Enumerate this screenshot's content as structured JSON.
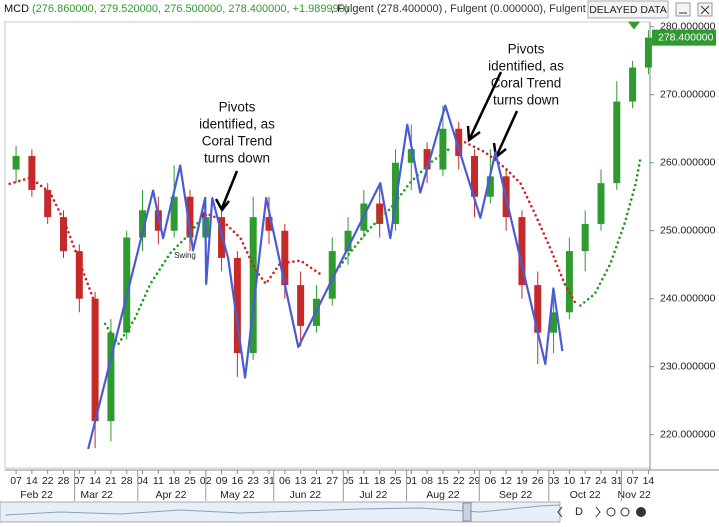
{
  "header": {
    "symbol": "MCD",
    "ohlc": "(276.860000, 279.520000, 276.500000, 278.400000, +1.989990)",
    "ind1": ", Fulgent (278.400000)",
    "ind2": ", Fulgent (0.000000)",
    "ind3": ", Fulgent",
    "status": "DELAYED DATA"
  },
  "toolbar": {
    "period": "D"
  },
  "chart_data": {
    "type": "candlestick",
    "x": [
      0,
      1,
      2,
      3,
      4,
      5,
      6,
      7,
      8,
      9,
      10,
      11,
      12,
      13,
      14,
      15,
      16,
      17,
      18,
      19,
      20,
      21,
      22,
      23,
      24,
      25,
      26,
      27,
      28,
      29,
      30,
      31,
      32,
      33,
      34,
      35,
      36,
      37,
      38,
      39,
      40
    ],
    "open": [
      259,
      261,
      256,
      252,
      247,
      240,
      222,
      235,
      249,
      253,
      250,
      255,
      249,
      252,
      246,
      232,
      252,
      250,
      242,
      236,
      240,
      247,
      250,
      254,
      251,
      260,
      262,
      259,
      265,
      261,
      255,
      258,
      252,
      242,
      235,
      238,
      247,
      251,
      257,
      269,
      274
    ],
    "high": [
      262.5,
      262,
      257,
      253,
      248,
      241,
      237,
      250,
      256,
      255,
      259.6,
      256,
      255,
      253,
      247,
      255,
      255,
      251,
      244,
      242,
      249,
      252,
      256,
      257,
      262,
      265.6,
      263,
      268.4,
      266,
      262,
      262,
      259,
      253,
      244,
      241.5,
      249,
      253,
      259,
      272,
      275,
      279.5
    ],
    "low": [
      257,
      255,
      251,
      246,
      238,
      218,
      219,
      234,
      247,
      248,
      249,
      247,
      242,
      244,
      228.5,
      231,
      248,
      240,
      233,
      235,
      239,
      245,
      249,
      249,
      250,
      256,
      257,
      258,
      259,
      252,
      254,
      250,
      240,
      230.4,
      232,
      237,
      244,
      250,
      256,
      268,
      273
    ],
    "close": [
      261,
      256,
      252,
      247,
      240,
      222,
      235,
      249,
      253,
      250,
      255,
      249,
      252,
      246,
      232,
      252,
      250,
      242,
      236,
      240,
      247,
      250,
      254,
      251,
      260,
      262,
      259,
      265,
      261,
      255,
      258,
      252,
      242,
      235,
      238,
      247,
      251,
      257,
      269,
      274,
      278.4
    ],
    "up_color": "#2f9a2f",
    "down_color": "#c42a2a",
    "xlim": [
      -0.7,
      40.1
    ],
    "xticks": [
      {
        "value": 0,
        "label": "07"
      },
      {
        "value": 1,
        "label": "14"
      },
      {
        "value": 2,
        "label": "22"
      },
      {
        "value": 3,
        "label": "28"
      },
      {
        "value": 4,
        "label": "07"
      },
      {
        "value": 5,
        "label": "14"
      },
      {
        "value": 6,
        "label": "21"
      },
      {
        "value": 7,
        "label": "28"
      },
      {
        "value": 8,
        "label": "04"
      },
      {
        "value": 9,
        "label": "11"
      },
      {
        "value": 10,
        "label": "18"
      },
      {
        "value": 11,
        "label": "25"
      },
      {
        "value": 12,
        "label": "02"
      },
      {
        "value": 13,
        "label": "09"
      },
      {
        "value": 14,
        "label": "16"
      },
      {
        "value": 15,
        "label": "23"
      },
      {
        "value": 16,
        "label": "31"
      },
      {
        "value": 17,
        "label": "06"
      },
      {
        "value": 18,
        "label": "13"
      },
      {
        "value": 19,
        "label": "21"
      },
      {
        "value": 20,
        "label": "27"
      },
      {
        "value": 21,
        "label": "05"
      },
      {
        "value": 22,
        "label": "11"
      },
      {
        "value": 23,
        "label": "18"
      },
      {
        "value": 24,
        "label": "25"
      },
      {
        "value": 25,
        "label": "01"
      },
      {
        "value": 26,
        "label": "08"
      },
      {
        "value": 27,
        "label": "15"
      },
      {
        "value": 28,
        "label": "22"
      },
      {
        "value": 29,
        "label": "29"
      },
      {
        "value": 30,
        "label": "06"
      },
      {
        "value": 31,
        "label": "12"
      },
      {
        "value": 32,
        "label": "19"
      },
      {
        "value": 33,
        "label": "26"
      },
      {
        "value": 34,
        "label": "03"
      },
      {
        "value": 35,
        "label": "10"
      },
      {
        "value": 36,
        "label": "17"
      },
      {
        "value": 37,
        "label": "24"
      },
      {
        "value": 38,
        "label": "31"
      },
      {
        "value": 39,
        "label": "07"
      },
      {
        "value": 40,
        "label": "14"
      }
    ],
    "months": [
      "Feb 22",
      "Mar 22",
      "Apr 22",
      "May 22",
      "Jun 22",
      "Jul 22",
      "Aug 22",
      "Sep 22",
      "Oct 22",
      "Nov 22"
    ],
    "ylim": [
      215.1,
      280.7
    ],
    "yticks": [
      {
        "value": 280,
        "label": "280.000000"
      },
      {
        "value": 270,
        "label": "270.000000"
      },
      {
        "value": 260,
        "label": "260.000000"
      },
      {
        "value": 250,
        "label": "250.000000"
      },
      {
        "value": 240,
        "label": "240.000000"
      },
      {
        "value": 230,
        "label": "230.000000"
      },
      {
        "value": 220,
        "label": "220.000000"
      }
    ],
    "last_price": {
      "value": 278.4,
      "label": "278.400000",
      "color": "#2f9a2f"
    },
    "zigzag": {
      "color": "#4a5bd6",
      "x": [
        4.56,
        8.67,
        9.3,
        10.38,
        11.2,
        11.96,
        12.03,
        12.41,
        13.42,
        14.49,
        15.82,
        17.85,
        23.04,
        23.67,
        24.75,
        25.57,
        27.15,
        29.37,
        30.32,
        33.48,
        33.99,
        34.56
      ],
      "values": [
        217.9,
        255.9,
        248.9,
        259.6,
        247.1,
        254.8,
        242.2,
        254.8,
        245.9,
        228.4,
        254.8,
        232.9,
        257.0,
        248.9,
        265.6,
        255.6,
        268.4,
        251.9,
        261.5,
        230.4,
        241.5,
        232.3
      ]
    },
    "coral_down": {
      "color": "#d42020",
      "x": [
        -0.4,
        0.9,
        2.15,
        3.1,
        4.05,
        5,
        null,
        11.96,
        13,
        14.2,
        15.1,
        15.8,
        16.7,
        18,
        19.2,
        null,
        28.4,
        29.7,
        30.9,
        31.9,
        32.8,
        33.8,
        34.7,
        35.4
      ],
      "values": [
        256.9,
        257.8,
        255.6,
        251.1,
        245.2,
        239.3,
        null,
        252.6,
        251.6,
        248.9,
        244.4,
        242.2,
        245.2,
        245.6,
        243.7,
        null,
        263,
        261.5,
        259.3,
        257,
        252.6,
        247.4,
        242.2,
        239.3
      ]
    },
    "coral_up": {
      "color": "#1f9a1f",
      "x": [
        5.63,
        6.46,
        7.5,
        8.5,
        9.75,
        11,
        11.65,
        null,
        19.9,
        21.1,
        22.4,
        23.7,
        24.9,
        26.2,
        27.5,
        null,
        35.7,
        36.6,
        37.6,
        38.5,
        39.2,
        39.5
      ],
      "values": [
        236.3,
        233.3,
        237,
        242.2,
        246.7,
        249.6,
        251.6,
        null,
        243,
        246.7,
        250.4,
        253.3,
        257,
        260,
        262.2,
        null,
        239,
        240.7,
        245.2,
        251.1,
        257,
        260.7
      ]
    },
    "swing_label": "Swing",
    "annotations": [
      [
        "Pivots",
        "identified, as",
        "Coral Trend",
        "turns down"
      ],
      [
        "Pivots",
        "identified, as",
        "Coral Trend",
        "turns down"
      ]
    ]
  }
}
